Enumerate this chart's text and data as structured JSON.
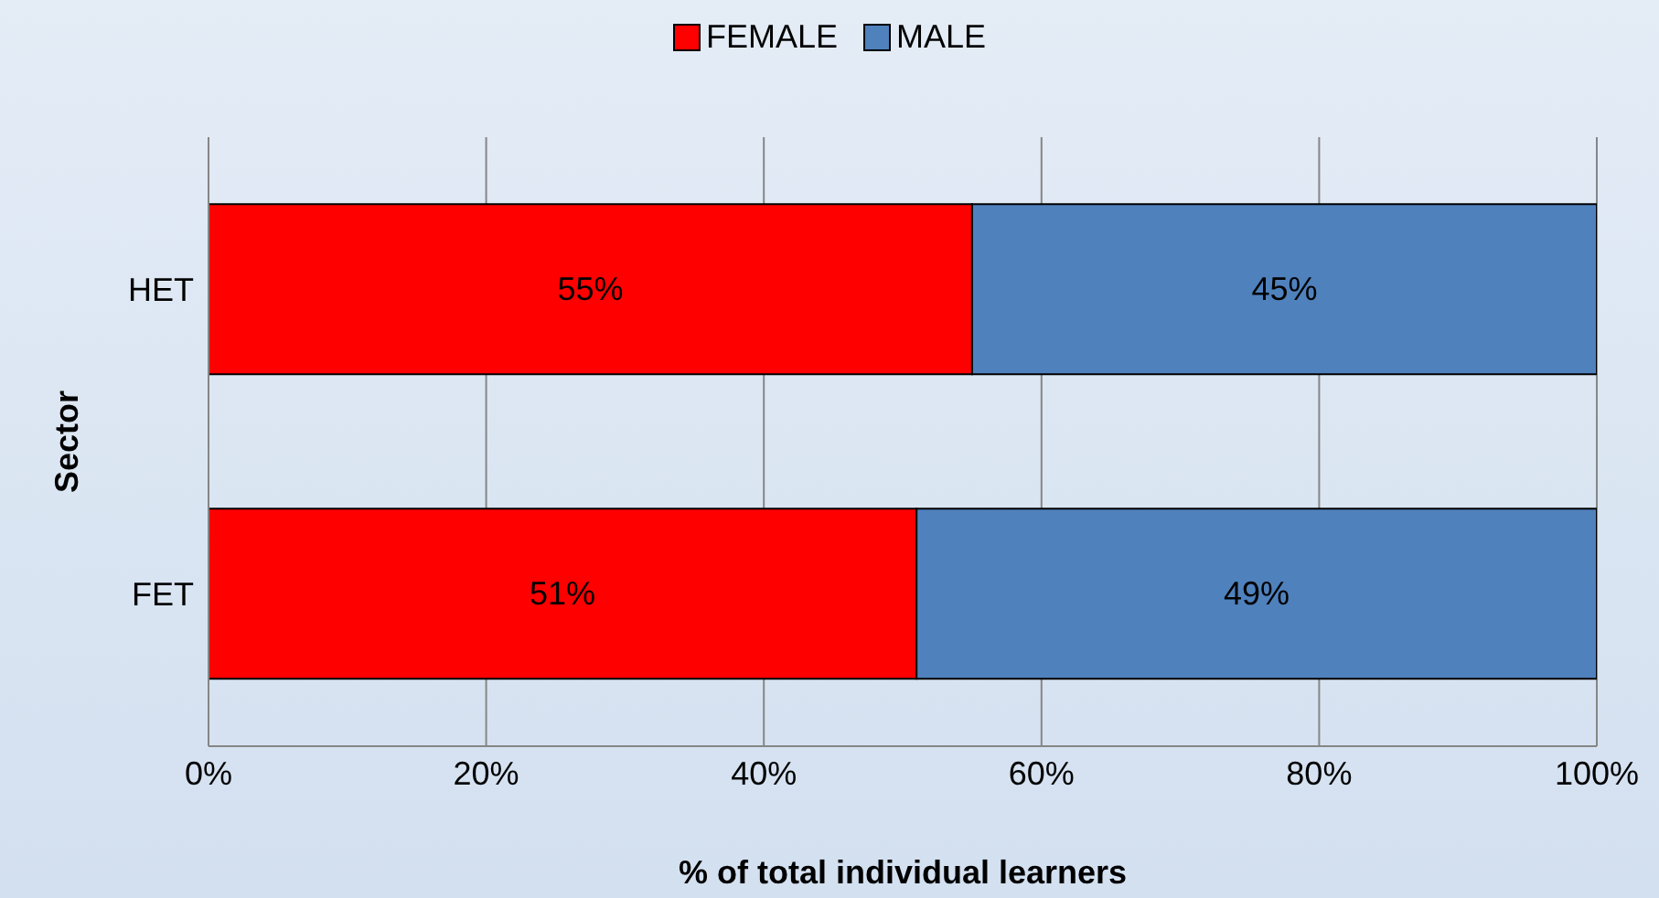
{
  "chart_data": {
    "type": "bar",
    "orientation": "horizontal",
    "stacked": true,
    "xlabel": "% of total individual learners",
    "ylabel": "Sector",
    "categories": [
      "HET",
      "FET"
    ],
    "series": [
      {
        "name": "FEMALE",
        "color": "#ff0000",
        "values": [
          55,
          51
        ],
        "value_labels": [
          "55%",
          "51%"
        ]
      },
      {
        "name": "MALE",
        "color": "#4f81bd",
        "values": [
          45,
          49
        ],
        "value_labels": [
          "45%",
          "49%"
        ]
      }
    ],
    "xlim": [
      0,
      100
    ],
    "xticks": [
      {
        "value": 0,
        "label": "0%"
      },
      {
        "value": 20,
        "label": "20%"
      },
      {
        "value": 40,
        "label": "40%"
      },
      {
        "value": 60,
        "label": "60%"
      },
      {
        "value": 80,
        "label": "80%"
      },
      {
        "value": 100,
        "label": "100%"
      }
    ],
    "grid": "x",
    "legend": "top"
  }
}
